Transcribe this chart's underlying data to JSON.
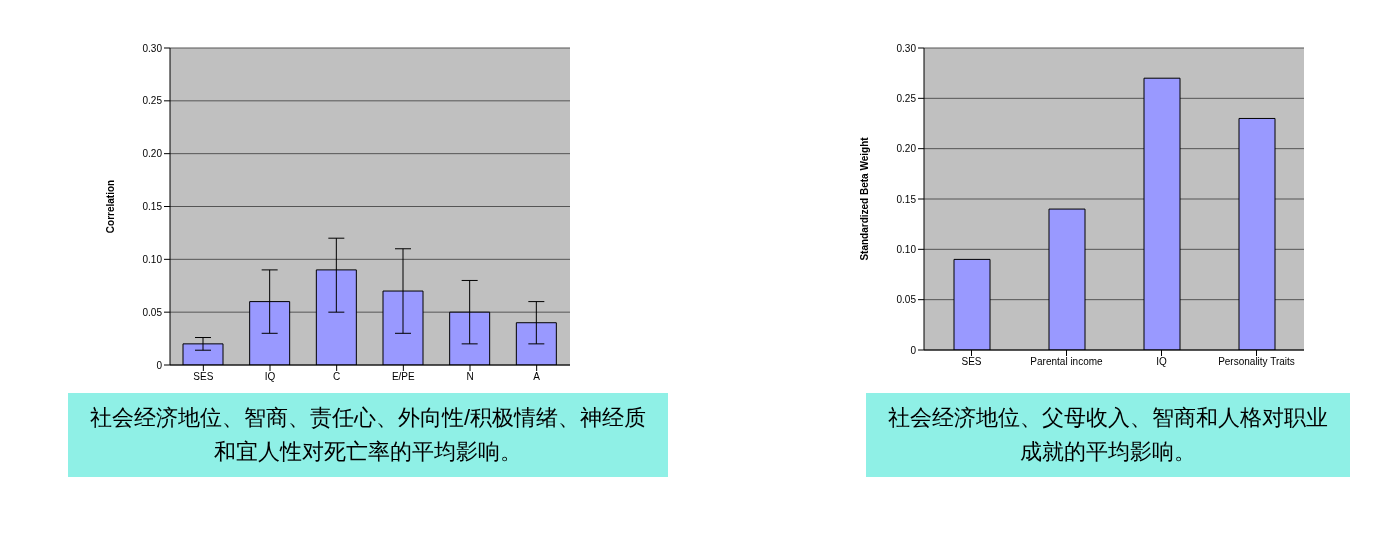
{
  "chart_data": [
    {
      "type": "bar",
      "ylabel": "Correlation",
      "categories": [
        "SES",
        "IQ",
        "C",
        "E/PE",
        "N",
        "A"
      ],
      "values": [
        0.02,
        0.06,
        0.09,
        0.07,
        0.05,
        0.04
      ],
      "errors": [
        [
          0.014,
          0.026
        ],
        [
          0.03,
          0.09
        ],
        [
          0.05,
          0.12
        ],
        [
          0.03,
          0.11
        ],
        [
          0.02,
          0.08
        ],
        [
          0.02,
          0.06
        ]
      ],
      "color": "#9999ff",
      "ylim": [
        0,
        0.3
      ],
      "yticks": [
        {
          "value": 0,
          "label": "0"
        },
        {
          "value": 0.05,
          "label": "0.05"
        },
        {
          "value": 0.1,
          "label": "0.10"
        },
        {
          "value": 0.15,
          "label": "0.15"
        },
        {
          "value": 0.2,
          "label": "0.20"
        },
        {
          "value": 0.25,
          "label": "0.25"
        },
        {
          "value": 0.3,
          "label": "0.30"
        }
      ],
      "grid": "y",
      "annotations": [
        "社会经济地位、智商、责任心、外向性/积极情绪、神经质和宜人性对死亡率的平均影响。"
      ]
    },
    {
      "type": "bar",
      "ylabel": "Standardized Beta Weight",
      "categories": [
        "SES",
        "Parental income",
        "IQ",
        "Personality Traits"
      ],
      "values": [
        0.09,
        0.14,
        0.27,
        0.23
      ],
      "color": "#9999ff",
      "ylim": [
        0,
        0.3
      ],
      "yticks": [
        {
          "value": 0,
          "label": "0"
        },
        {
          "value": 0.05,
          "label": "0.05"
        },
        {
          "value": 0.1,
          "label": "0.10"
        },
        {
          "value": 0.15,
          "label": "0.15"
        },
        {
          "value": 0.2,
          "label": "0.20"
        },
        {
          "value": 0.25,
          "label": "0.25"
        },
        {
          "value": 0.3,
          "label": "0.30"
        }
      ],
      "grid": "y",
      "annotations": [
        "社会经济地位、父母收入、智商和人格对职业成就的平均影响。"
      ]
    }
  ]
}
